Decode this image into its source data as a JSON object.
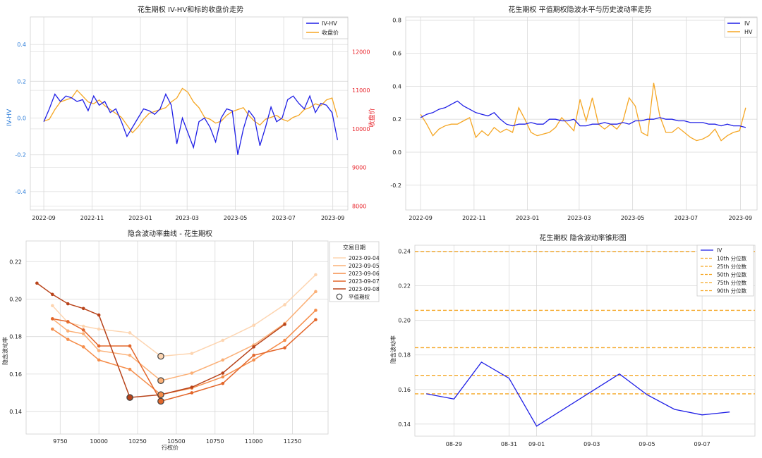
{
  "colors": {
    "blue": "#1f1fe6",
    "orange": "#f5a623",
    "red": "#e8232a",
    "tick_blue": "#2a7bd8",
    "grid": "#d9d9d9",
    "marker_ring": "#404040"
  },
  "charts": {
    "tl": {
      "title": "花生期权 IV-HV和标的收盘价走势",
      "ylabel": "IV-HV",
      "y2label": "收盘价",
      "ticks_x": [
        "2022-09",
        "2022-11",
        "2023-01",
        "2023-03",
        "2023-05",
        "2023-07",
        "2023-09"
      ],
      "ticks_y": [
        "-0.4",
        "-0.2",
        "0.0",
        "0.2",
        "0.4"
      ],
      "ticks_y2": [
        "8000",
        "9000",
        "10000",
        "11000",
        "12000"
      ],
      "legend": [
        "IV-HV",
        "收盘价"
      ]
    },
    "tr": {
      "title": "花生期权 平值期权隐波水平与历史波动率走势",
      "ticks_x": [
        "2022-09",
        "2022-11",
        "2023-01",
        "2023-03",
        "2023-05",
        "2023-07",
        "2023-09"
      ],
      "ticks_y": [
        "-0.2",
        "0.0",
        "0.2",
        "0.4",
        "0.6",
        "0.8"
      ],
      "legend": [
        "IV",
        "HV"
      ]
    },
    "bl": {
      "title": "隐含波动率曲线 - 花生期权",
      "xlabel": "行权价",
      "ylabel": "隐含波动率",
      "ticks_x": [
        "9750",
        "10000",
        "10250",
        "10500",
        "10750",
        "11000",
        "11250"
      ],
      "ticks_y": [
        "0.14",
        "0.16",
        "0.18",
        "0.20",
        "0.22"
      ],
      "legend_title": "交易日期",
      "legend": [
        "2023-09-04",
        "2023-09-05",
        "2023-09-06",
        "2023-09-07",
        "2023-09-08"
      ],
      "legend_marker": "平值期权"
    },
    "br": {
      "title": "花生期权 隐含波动率锥形图",
      "ylabel": "隐含波动率",
      "ticks_x": [
        "08-29",
        "08-31",
        "09-01",
        "09-03",
        "09-05",
        "09-07"
      ],
      "ticks_y": [
        "0.14",
        "0.16",
        "0.18",
        "0.20",
        "0.22",
        "0.24"
      ],
      "legend": [
        "IV",
        "10th 分位数",
        "25th 分位数",
        "50th 分位数",
        "75th 分位数",
        "90th 分位数"
      ]
    }
  },
  "chart_data": [
    {
      "type": "line",
      "title": "花生期权 IV-HV和标的收盘价走势",
      "ylabel": "IV-HV",
      "y2label": "收盘价",
      "xlim": [
        "2022-08-15",
        "2023-09-20"
      ],
      "ylim": [
        -0.5,
        0.55
      ],
      "y2lim": [
        7900,
        12900
      ],
      "series": [
        {
          "name": "IV-HV",
          "axis": "left",
          "x": [
            "2022-09-01",
            "2022-09-08",
            "2022-09-15",
            "2022-09-22",
            "2022-09-29",
            "2022-10-06",
            "2022-10-13",
            "2022-10-20",
            "2022-10-27",
            "2022-11-03",
            "2022-11-10",
            "2022-11-17",
            "2022-11-24",
            "2022-12-01",
            "2022-12-08",
            "2022-12-15",
            "2022-12-22",
            "2022-12-29",
            "2023-01-05",
            "2023-01-12",
            "2023-01-19",
            "2023-01-26",
            "2023-02-02",
            "2023-02-09",
            "2023-02-16",
            "2023-02-23",
            "2023-03-02",
            "2023-03-09",
            "2023-03-16",
            "2023-03-23",
            "2023-03-30",
            "2023-04-06",
            "2023-04-13",
            "2023-04-20",
            "2023-04-27",
            "2023-05-04",
            "2023-05-11",
            "2023-05-18",
            "2023-05-25",
            "2023-06-01",
            "2023-06-08",
            "2023-06-15",
            "2023-06-22",
            "2023-06-29",
            "2023-07-06",
            "2023-07-13",
            "2023-07-20",
            "2023-07-27",
            "2023-08-03",
            "2023-08-10",
            "2023-08-17",
            "2023-08-24",
            "2023-08-31",
            "2023-09-07"
          ],
          "values": [
            -0.02,
            0.05,
            0.13,
            0.09,
            0.12,
            0.11,
            0.09,
            0.1,
            0.04,
            0.12,
            0.07,
            0.09,
            0.03,
            0.05,
            -0.02,
            -0.1,
            -0.05,
            0.0,
            0.05,
            0.04,
            0.02,
            0.05,
            0.13,
            0.07,
            -0.14,
            0.0,
            -0.08,
            -0.16,
            -0.02,
            0.0,
            -0.05,
            -0.13,
            0.0,
            0.05,
            0.04,
            -0.2,
            -0.06,
            0.04,
            0.0,
            -0.15,
            -0.05,
            0.06,
            -0.02,
            0.0,
            0.1,
            0.12,
            0.08,
            0.05,
            0.12,
            0.03,
            0.08,
            0.07,
            0.03,
            -0.12
          ]
        },
        {
          "name": "收盘价",
          "axis": "right",
          "x": [
            "2022-09-01",
            "2022-09-08",
            "2022-09-15",
            "2022-09-22",
            "2022-09-29",
            "2022-10-06",
            "2022-10-13",
            "2022-10-20",
            "2022-10-27",
            "2022-11-03",
            "2022-11-10",
            "2022-11-17",
            "2022-11-24",
            "2022-12-01",
            "2022-12-08",
            "2022-12-15",
            "2022-12-22",
            "2022-12-29",
            "2023-01-05",
            "2023-01-12",
            "2023-01-19",
            "2023-01-26",
            "2023-02-02",
            "2023-02-09",
            "2023-02-16",
            "2023-02-23",
            "2023-03-02",
            "2023-03-09",
            "2023-03-16",
            "2023-03-23",
            "2023-03-30",
            "2023-04-06",
            "2023-04-13",
            "2023-04-20",
            "2023-04-27",
            "2023-05-04",
            "2023-05-11",
            "2023-05-18",
            "2023-05-25",
            "2023-06-01",
            "2023-06-08",
            "2023-06-15",
            "2023-06-22",
            "2023-06-29",
            "2023-07-06",
            "2023-07-13",
            "2023-07-20",
            "2023-07-27",
            "2023-08-03",
            "2023-08-10",
            "2023-08-17",
            "2023-08-24",
            "2023-08-31",
            "2023-09-07"
          ],
          "values": [
            10200,
            10250,
            10500,
            10700,
            10750,
            10800,
            11000,
            10850,
            10700,
            10650,
            10750,
            10600,
            10500,
            10400,
            10300,
            10100,
            9900,
            10050,
            10250,
            10400,
            10450,
            10500,
            10550,
            10700,
            10800,
            11050,
            10950,
            10700,
            10550,
            10300,
            10250,
            10150,
            10200,
            10350,
            10450,
            10500,
            10550,
            10350,
            10200,
            10100,
            10250,
            10300,
            10350,
            10250,
            10200,
            10300,
            10350,
            10500,
            10550,
            10650,
            10600,
            10750,
            10800,
            10300
          ]
        }
      ]
    },
    {
      "type": "line",
      "title": "花生期权 平值期权隐波水平与历史波动率走势",
      "xlim": [
        "2022-08-15",
        "2023-09-20"
      ],
      "ylim": [
        -0.35,
        0.82
      ],
      "series": [
        {
          "name": "IV",
          "x": [
            "2022-09-01",
            "2022-09-08",
            "2022-09-15",
            "2022-09-22",
            "2022-09-29",
            "2022-10-06",
            "2022-10-13",
            "2022-10-20",
            "2022-10-27",
            "2022-11-03",
            "2022-11-10",
            "2022-11-17",
            "2022-11-24",
            "2022-12-01",
            "2022-12-08",
            "2022-12-15",
            "2022-12-22",
            "2022-12-29",
            "2023-01-05",
            "2023-01-12",
            "2023-01-19",
            "2023-01-26",
            "2023-02-02",
            "2023-02-09",
            "2023-02-16",
            "2023-02-23",
            "2023-03-02",
            "2023-03-09",
            "2023-03-16",
            "2023-03-23",
            "2023-03-30",
            "2023-04-06",
            "2023-04-13",
            "2023-04-20",
            "2023-04-27",
            "2023-05-04",
            "2023-05-11",
            "2023-05-18",
            "2023-05-25",
            "2023-06-01",
            "2023-06-08",
            "2023-06-15",
            "2023-06-22",
            "2023-06-29",
            "2023-07-06",
            "2023-07-13",
            "2023-07-20",
            "2023-07-27",
            "2023-08-03",
            "2023-08-10",
            "2023-08-17",
            "2023-08-24",
            "2023-08-31",
            "2023-09-07"
          ],
          "values": [
            0.21,
            0.23,
            0.24,
            0.26,
            0.27,
            0.29,
            0.31,
            0.28,
            0.26,
            0.24,
            0.23,
            0.22,
            0.24,
            0.2,
            0.17,
            0.16,
            0.17,
            0.17,
            0.18,
            0.17,
            0.17,
            0.2,
            0.2,
            0.19,
            0.19,
            0.2,
            0.16,
            0.16,
            0.17,
            0.17,
            0.18,
            0.17,
            0.17,
            0.18,
            0.17,
            0.19,
            0.19,
            0.2,
            0.2,
            0.21,
            0.2,
            0.2,
            0.19,
            0.19,
            0.18,
            0.18,
            0.18,
            0.17,
            0.17,
            0.16,
            0.17,
            0.16,
            0.16,
            0.15
          ]
        },
        {
          "name": "HV",
          "x": [
            "2022-09-01",
            "2022-09-08",
            "2022-09-15",
            "2022-09-22",
            "2022-09-29",
            "2022-10-06",
            "2022-10-13",
            "2022-10-20",
            "2022-10-27",
            "2022-11-03",
            "2022-11-10",
            "2022-11-17",
            "2022-11-24",
            "2022-12-01",
            "2022-12-08",
            "2022-12-15",
            "2022-12-22",
            "2022-12-29",
            "2023-01-05",
            "2023-01-12",
            "2023-01-19",
            "2023-01-26",
            "2023-02-02",
            "2023-02-09",
            "2023-02-16",
            "2023-02-23",
            "2023-03-02",
            "2023-03-09",
            "2023-03-16",
            "2023-03-23",
            "2023-03-30",
            "2023-04-06",
            "2023-04-13",
            "2023-04-20",
            "2023-04-27",
            "2023-05-04",
            "2023-05-11",
            "2023-05-18",
            "2023-05-25",
            "2023-06-01",
            "2023-06-08",
            "2023-06-15",
            "2023-06-22",
            "2023-06-29",
            "2023-07-06",
            "2023-07-13",
            "2023-07-20",
            "2023-07-27",
            "2023-08-03",
            "2023-08-10",
            "2023-08-17",
            "2023-08-24",
            "2023-08-31",
            "2023-09-07"
          ],
          "values": [
            0.23,
            0.17,
            0.1,
            0.14,
            0.16,
            0.17,
            0.17,
            0.19,
            0.21,
            0.09,
            0.13,
            0.1,
            0.15,
            0.12,
            0.14,
            0.12,
            0.27,
            0.2,
            0.12,
            0.1,
            0.11,
            0.12,
            0.15,
            0.21,
            0.17,
            0.13,
            0.32,
            0.19,
            0.33,
            0.17,
            0.14,
            0.17,
            0.14,
            0.19,
            0.33,
            0.28,
            0.12,
            0.1,
            0.42,
            0.22,
            0.12,
            0.12,
            0.15,
            0.12,
            0.09,
            0.07,
            0.08,
            0.1,
            0.14,
            0.07,
            0.1,
            0.12,
            0.13,
            0.27
          ]
        }
      ]
    },
    {
      "type": "line",
      "title": "隐含波动率曲线 - 花生期权",
      "xlabel": "行权价",
      "ylabel": "隐含波动率",
      "xlim": [
        9530,
        11480
      ],
      "ylim": [
        0.128,
        0.231
      ],
      "series": [
        {
          "name": "2023-09-04",
          "x": [
            9700,
            9800,
            9900,
            10000,
            10200,
            10400,
            10600,
            10800,
            11000,
            11200,
            11400
          ],
          "values": [
            0.1965,
            0.1875,
            0.1855,
            0.184,
            0.182,
            0.1695,
            0.171,
            0.178,
            0.186,
            0.197,
            0.213
          ],
          "atm": {
            "x": 10400,
            "y": 0.1695
          }
        },
        {
          "name": "2023-09-05",
          "x": [
            9700,
            9800,
            9900,
            10000,
            10200,
            10400,
            10600,
            10800,
            11000,
            11200,
            11400
          ],
          "values": [
            0.1895,
            0.183,
            0.1815,
            0.1725,
            0.17,
            0.1565,
            0.1605,
            0.1675,
            0.1755,
            0.187,
            0.204
          ],
          "atm": {
            "x": 10400,
            "y": 0.1565
          }
        },
        {
          "name": "2023-09-06",
          "x": [
            9700,
            9800,
            9900,
            10000,
            10200,
            10400,
            10600,
            10800,
            11000,
            11200,
            11400
          ],
          "values": [
            0.184,
            0.1785,
            0.1745,
            0.1675,
            0.1625,
            0.149,
            0.1525,
            0.1585,
            0.1675,
            0.178,
            0.194
          ],
          "atm": {
            "x": 10400,
            "y": 0.149
          }
        },
        {
          "name": "2023-09-07",
          "x": [
            9700,
            9800,
            9900,
            10000,
            10200,
            10400,
            10600,
            10800,
            11000,
            11200,
            11400
          ],
          "values": [
            0.1895,
            0.188,
            0.1835,
            0.175,
            0.175,
            0.1455,
            0.15,
            0.155,
            0.17,
            0.174,
            0.189
          ],
          "atm": {
            "x": 10400,
            "y": 0.1455
          }
        },
        {
          "name": "2023-09-08",
          "x": [
            9600,
            9700,
            9800,
            9900,
            10000,
            10200,
            10400,
            10600,
            10800,
            11000,
            11200
          ],
          "values": [
            0.2085,
            0.2025,
            0.1975,
            0.195,
            0.1915,
            0.1475,
            0.149,
            0.153,
            0.1605,
            0.1745,
            0.1865
          ],
          "atm": {
            "x": 10200,
            "y": 0.1475
          }
        }
      ]
    },
    {
      "type": "line",
      "title": "花生期权 隐含波动率锥形图",
      "ylabel": "隐含波动率",
      "xlim": [
        "2023-08-27T14:00",
        "2023-09-08T22:00"
      ],
      "ylim": [
        0.133,
        0.2435
      ],
      "series": [
        {
          "name": "IV",
          "x": [
            "2023-08-28",
            "2023-08-29",
            "2023-08-30",
            "2023-08-31",
            "2023-09-01",
            "2023-09-04",
            "2023-09-05",
            "2023-09-06",
            "2023-09-07",
            "2023-09-08"
          ],
          "values": [
            0.1575,
            0.1545,
            0.1758,
            0.1665,
            0.1388,
            0.169,
            0.157,
            0.1485,
            0.1453,
            0.147
          ]
        },
        {
          "name": "10th 分位数",
          "values": [
            0.1575
          ]
        },
        {
          "name": "25th 分位数",
          "values": [
            0.1682
          ]
        },
        {
          "name": "50th 分位数",
          "values": [
            0.1842
          ]
        },
        {
          "name": "75th 分位数",
          "values": [
            0.2058
          ]
        },
        {
          "name": "90th 分位数",
          "values": [
            0.2398
          ]
        }
      ]
    }
  ]
}
